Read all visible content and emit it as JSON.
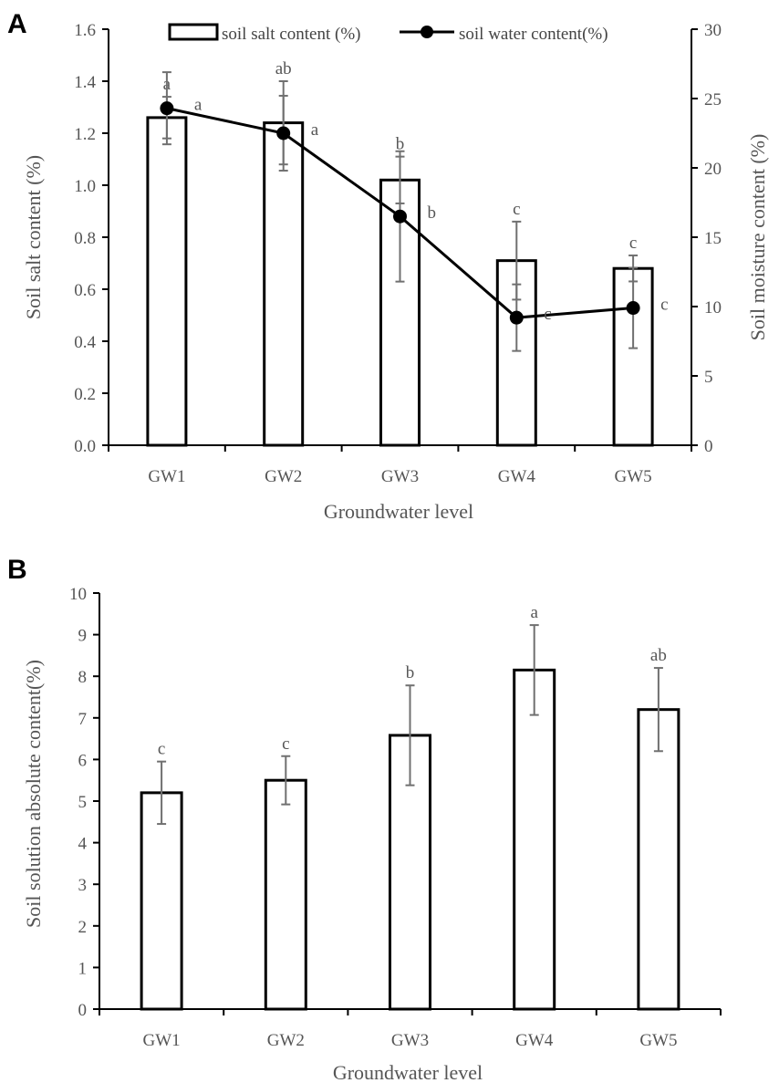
{
  "chart_data": [
    {
      "panel": "A",
      "type": "bar+line",
      "categories": [
        "GW1",
        "GW2",
        "GW3",
        "GW4",
        "GW5"
      ],
      "xlabel": "Groundwater level",
      "ylabel": "Soil salt content (%)",
      "y2label": "Soil moisture content (%)",
      "ylim": [
        0,
        1.6
      ],
      "yticks": [
        "0.0",
        "0.2",
        "0.4",
        "0.6",
        "0.8",
        "1.0",
        "1.2",
        "1.4",
        "1.6"
      ],
      "y2lim": [
        0,
        30
      ],
      "y2ticks": [
        "0",
        "5",
        "10",
        "15",
        "20",
        "25",
        "30"
      ],
      "legend_position": "top",
      "series": [
        {
          "name": "soil salt content (%)",
          "kind": "bar",
          "axis": "left",
          "values": [
            1.26,
            1.24,
            1.02,
            0.71,
            0.68
          ],
          "errors": [
            0.08,
            0.16,
            0.09,
            0.15,
            0.05
          ],
          "labels": [
            "a",
            "ab",
            "b",
            "c",
            "c"
          ]
        },
        {
          "name": "soil water content(%)",
          "kind": "line",
          "axis": "right",
          "values": [
            24.3,
            22.5,
            16.5,
            9.2,
            9.9
          ],
          "errors": [
            2.6,
            2.7,
            4.7,
            2.4,
            2.9
          ],
          "labels": [
            "a",
            "a",
            "b",
            "c",
            "c"
          ]
        }
      ]
    },
    {
      "panel": "B",
      "type": "bar",
      "categories": [
        "GW1",
        "GW2",
        "GW3",
        "GW4",
        "GW5"
      ],
      "xlabel": "Groundwater level",
      "ylabel": "Soil solution absolute content(%)",
      "ylim": [
        0,
        10
      ],
      "yticks": [
        "0",
        "1",
        "2",
        "3",
        "4",
        "5",
        "6",
        "7",
        "8",
        "9",
        "10"
      ],
      "values": [
        5.2,
        5.5,
        6.58,
        8.15,
        7.2
      ],
      "errors": [
        0.75,
        0.58,
        1.2,
        1.08,
        1.0
      ],
      "labels": [
        "c",
        "c",
        "b",
        "a",
        "ab"
      ]
    }
  ],
  "colors": {
    "bar_fill": "#ffffff",
    "bar_stroke": "#000000",
    "line": "#000000",
    "error_bar": "#707070",
    "axis": "#000000",
    "text": "#555555"
  }
}
